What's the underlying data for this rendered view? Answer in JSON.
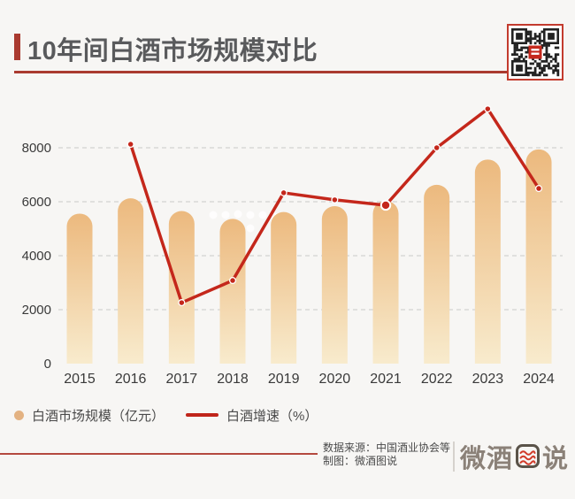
{
  "page": {
    "background": "#f7f6f4"
  },
  "header": {
    "title": "10年间白酒市场规模对比",
    "accent_color": "#aa3a30",
    "title_color": "#595a5c"
  },
  "chart_data": {
    "type": "bar",
    "subtype": "bar+line combo",
    "title": "10年间白酒市场规模对比",
    "categories": [
      "2015",
      "2016",
      "2017",
      "2018",
      "2019",
      "2020",
      "2021",
      "2022",
      "2023",
      "2024"
    ],
    "series": [
      {
        "name": "白酒市场规模（亿元）",
        "type": "bar",
        "values": [
          5559,
          6126,
          5654,
          5364,
          5618,
          5836,
          6033,
          6626,
          7563,
          7940
        ],
        "color_top": "#ecb97e",
        "color_bottom": "#f8ebcd"
      },
      {
        "name": "白酒增速（%）",
        "type": "line",
        "values": [
          null,
          8130,
          2260,
          3080,
          6330,
          6070,
          5870,
          8000,
          9440,
          6490
        ],
        "color": "#c4271b",
        "marker": "dot",
        "emphasized_category": "2021",
        "note": "line plotted against the left axis scale; no secondary axis is shown"
      }
    ],
    "xlabel": "",
    "ylabel": "",
    "yticks": [
      0,
      2000,
      4000,
      6000,
      8000
    ],
    "ylim": [
      0,
      9600
    ],
    "grid": "horizontal dashed",
    "grid_color": "#c9c9c9",
    "tick_color": "#3a3a3a",
    "legend_position": "bottom-left"
  },
  "legend": {
    "items": [
      {
        "label": "白酒市场规模（亿元）",
        "marker": "dot",
        "color": "#e3b282"
      },
      {
        "label": "白酒增速（%）",
        "marker": "line",
        "color": "#c0251a"
      }
    ]
  },
  "footer": {
    "source": "数据来源：中国酒业协会等",
    "credit": "制图：微酒图说",
    "logo_prefix": "微酒",
    "logo_suffix": "说",
    "rule_color": "#b4493f"
  }
}
